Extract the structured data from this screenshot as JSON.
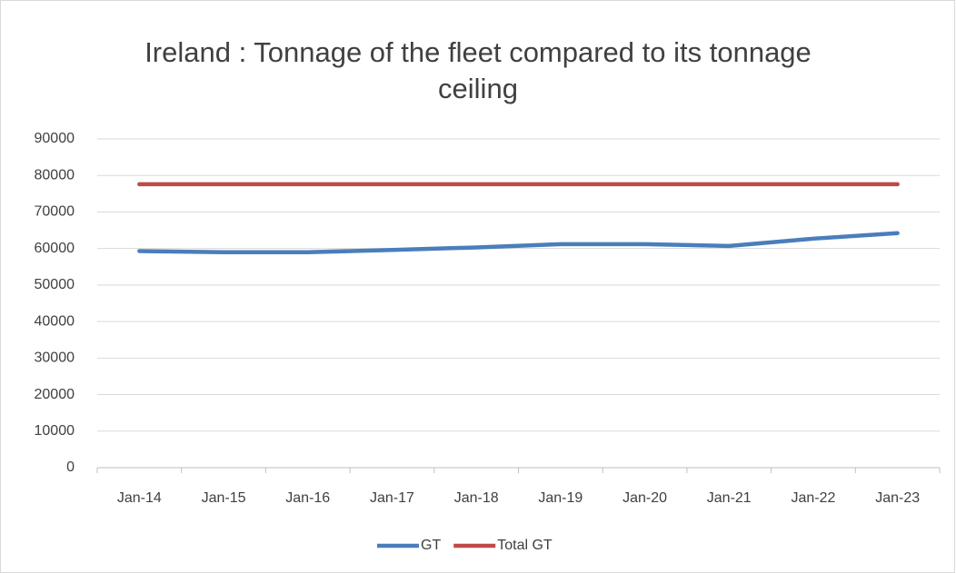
{
  "chart_data": {
    "type": "line",
    "title": "Ireland : Tonnage of the fleet compared to its tonnage ceiling",
    "categories": [
      "Jan-14",
      "Jan-15",
      "Jan-16",
      "Jan-17",
      "Jan-18",
      "Jan-19",
      "Jan-20",
      "Jan-21",
      "Jan-22",
      "Jan-23"
    ],
    "series": [
      {
        "name": "GT",
        "color": "#4a7ebb",
        "values": [
          59300,
          59000,
          59000,
          59600,
          60300,
          61200,
          61200,
          60700,
          62700,
          64200
        ]
      },
      {
        "name": "Total GT",
        "color": "#be4b48",
        "values": [
          77600,
          77600,
          77600,
          77600,
          77600,
          77600,
          77600,
          77600,
          77600,
          77600
        ]
      }
    ],
    "ylim": [
      0,
      90000
    ],
    "yticks": [
      0,
      10000,
      20000,
      30000,
      40000,
      50000,
      60000,
      70000,
      80000,
      90000
    ],
    "grid": true,
    "legend": "bottom"
  }
}
